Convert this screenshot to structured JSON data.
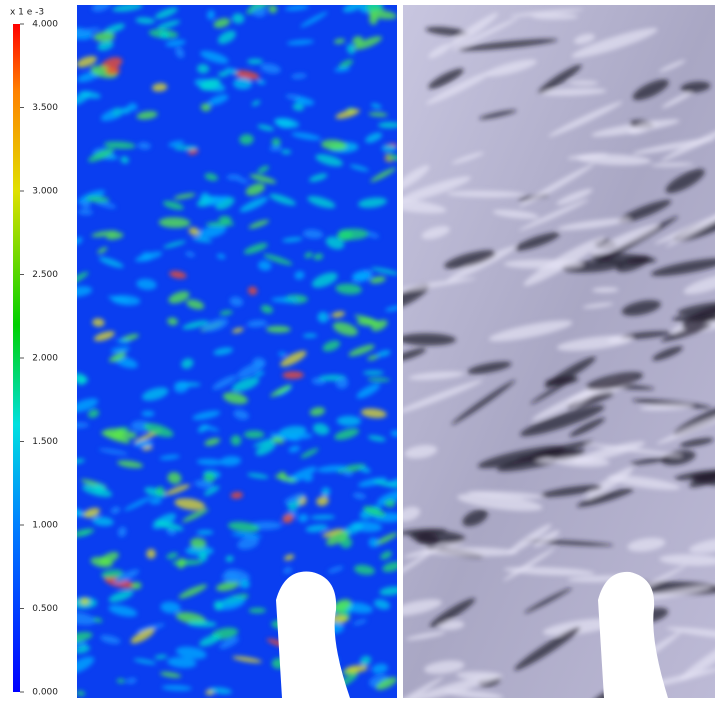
{
  "colorbar": {
    "label": "x 1 e -3",
    "lim": [
      0,
      4
    ],
    "ticks": [
      {
        "value": 0,
        "label": "0.000"
      },
      {
        "value": 0.5,
        "label": "0.500"
      },
      {
        "value": 1,
        "label": "1.000"
      },
      {
        "value": 1.5,
        "label": "1.500"
      },
      {
        "value": 2,
        "label": "2.000"
      },
      {
        "value": 2.5,
        "label": "2.500"
      },
      {
        "value": 3,
        "label": "3.000"
      },
      {
        "value": 3.5,
        "label": "3.500"
      },
      {
        "value": 4,
        "label": "4.000"
      }
    ]
  }
}
